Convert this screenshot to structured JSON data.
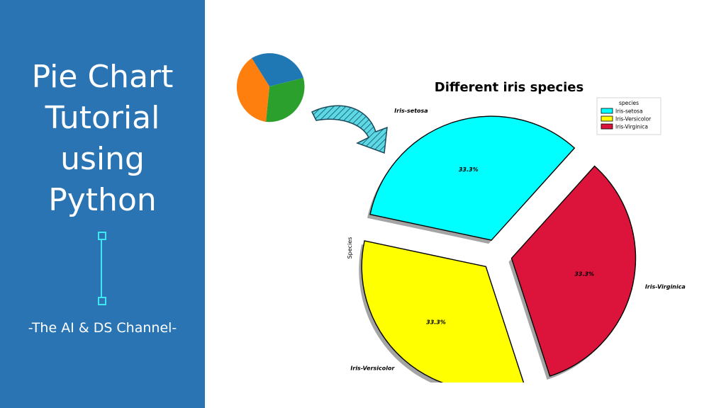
{
  "sidebar": {
    "title_lines": [
      "Pie Chart",
      "Tutorial",
      "using",
      "Python"
    ],
    "channel": "-The AI & DS Channel-",
    "background": "#2a74b4",
    "accent": "#3ee6f2"
  },
  "thumbnail_pie": {
    "colors": [
      "#1f77b4",
      "#2ca02c",
      "#ff7f0e"
    ]
  },
  "chart_data": {
    "type": "pie",
    "title": "Different iris species",
    "ylabel": "Species",
    "legend_title": "species",
    "legend_position": "top-right",
    "categories": [
      "Iris-setosa",
      "Iris-Versicolor",
      "Iris-Virginica"
    ],
    "values": [
      33.3,
      33.3,
      33.3
    ],
    "value_labels": [
      "33.3%",
      "33.3%",
      "33.3%"
    ],
    "colors": [
      "#00ffff",
      "#ffff00",
      "#dc143c"
    ],
    "exploded": true,
    "shadow": true
  }
}
